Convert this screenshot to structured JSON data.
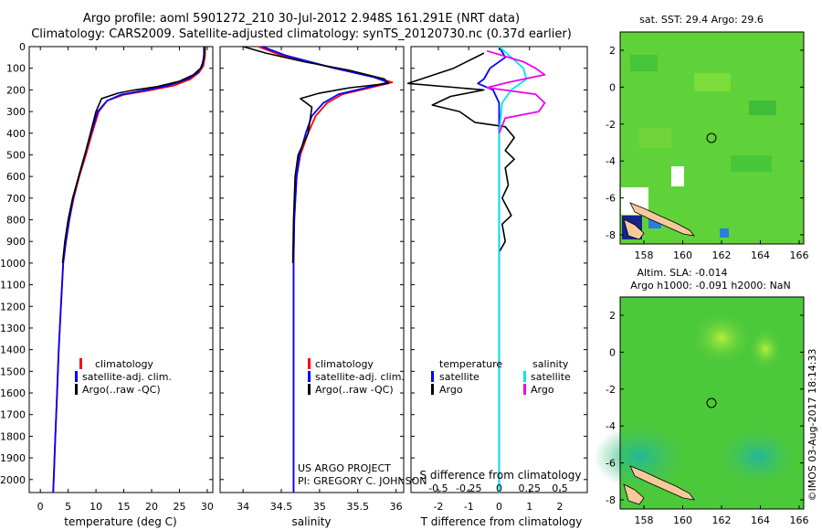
{
  "title": {
    "line1": "Argo profile: aoml 5901272_210 30-Jul-2012 2.948S 161.291E (NRT data)",
    "line2": "Climatology: CARS2009. Satellite-adjusted climatology: synTS_20120730.nc (0.37d earlier)"
  },
  "colors": {
    "climatology": "#ff0000",
    "satellite_adj": "#0000ff",
    "argo": "#000000",
    "s_diff": "#00e5ee",
    "argo_s_diff": "#ee00ee",
    "map_green": "#4fcf3a"
  },
  "depth_axis": {
    "ticks": [
      0,
      100,
      200,
      300,
      400,
      500,
      600,
      700,
      800,
      900,
      1000,
      1100,
      1200,
      1300,
      1400,
      1500,
      1600,
      1700,
      1800,
      1900,
      2000
    ],
    "range": [
      0,
      2060
    ]
  },
  "chart_data": [
    {
      "type": "line",
      "name": "temperature",
      "xlabel": "temperature (deg C)",
      "xlim": [
        -2,
        31
      ],
      "xticks": [
        0,
        5,
        10,
        15,
        20,
        25,
        30
      ],
      "legend": [
        "climatology",
        "satellite-adj. clim.",
        "Argo(..raw -QC)"
      ],
      "series": [
        {
          "name": "climatology",
          "points": [
            [
              29.6,
              0
            ],
            [
              29.6,
              40
            ],
            [
              29.3,
              90
            ],
            [
              28.5,
              120
            ],
            [
              27,
              150
            ],
            [
              24,
              180
            ],
            [
              19,
              205
            ],
            [
              15,
              222
            ],
            [
              12,
              250
            ],
            [
              10.5,
              300
            ],
            [
              9.3,
              400
            ],
            [
              8.2,
              500
            ],
            [
              7,
              600
            ],
            [
              6,
              700
            ],
            [
              5.2,
              800
            ],
            [
              4.6,
              900
            ],
            [
              4.1,
              1000
            ],
            [
              3.7,
              1200
            ],
            [
              3.3,
              1400
            ],
            [
              3,
              1600
            ],
            [
              2.7,
              1800
            ],
            [
              2.4,
              2000
            ],
            [
              2.3,
              2060
            ]
          ]
        },
        {
          "name": "satellite-adj. clim.",
          "points": [
            [
              29.4,
              0
            ],
            [
              29.4,
              40
            ],
            [
              29.1,
              90
            ],
            [
              28.3,
              120
            ],
            [
              26.5,
              150
            ],
            [
              23,
              180
            ],
            [
              18,
              205
            ],
            [
              14.5,
              222
            ],
            [
              12,
              250
            ],
            [
              10.3,
              300
            ],
            [
              9.1,
              400
            ],
            [
              8,
              500
            ],
            [
              6.9,
              600
            ],
            [
              5.9,
              700
            ],
            [
              5.2,
              800
            ],
            [
              4.6,
              900
            ],
            [
              4.1,
              1000
            ],
            [
              3.7,
              1200
            ],
            [
              3.3,
              1400
            ],
            [
              3,
              1600
            ],
            [
              2.7,
              1800
            ],
            [
              2.4,
              2000
            ],
            [
              2.3,
              2060
            ]
          ]
        },
        {
          "name": "Argo(..raw -QC)",
          "points": [
            [
              29.6,
              0
            ],
            [
              29.4,
              60
            ],
            [
              28.8,
              100
            ],
            [
              27.5,
              130
            ],
            [
              25,
              160
            ],
            [
              21,
              185
            ],
            [
              17,
              200
            ],
            [
              14,
              215
            ],
            [
              11,
              240
            ],
            [
              10,
              300
            ],
            [
              9,
              400
            ],
            [
              8,
              500
            ],
            [
              6.9,
              600
            ],
            [
              5.8,
              700
            ],
            [
              5,
              800
            ],
            [
              4.4,
              900
            ],
            [
              4,
              1000
            ]
          ]
        }
      ]
    },
    {
      "type": "line",
      "name": "salinity",
      "xlabel": "salinity",
      "xlim": [
        33.7,
        36.1
      ],
      "xticks": [
        34,
        34.5,
        35,
        35.5,
        36
      ],
      "xticklabels": [
        "34",
        "34.5",
        "35",
        "35.5",
        "36"
      ],
      "legend": [
        "climatology",
        "satellite-adj. clim.",
        "Argo(..raw -QC)"
      ],
      "series": [
        {
          "name": "climatology",
          "points": [
            [
              34.2,
              0
            ],
            [
              34.5,
              40
            ],
            [
              35.2,
              100
            ],
            [
              35.7,
              140
            ],
            [
              35.95,
              165
            ],
            [
              35.6,
              195
            ],
            [
              35.3,
              220
            ],
            [
              35.1,
              260
            ],
            [
              34.95,
              320
            ],
            [
              34.85,
              400
            ],
            [
              34.75,
              500
            ],
            [
              34.7,
              600
            ],
            [
              34.67,
              800
            ],
            [
              34.66,
              1000
            ],
            [
              34.66,
              2060
            ]
          ]
        },
        {
          "name": "satellite-adj. clim.",
          "points": [
            [
              34.25,
              0
            ],
            [
              34.55,
              40
            ],
            [
              35.2,
              100
            ],
            [
              35.7,
              140
            ],
            [
              35.9,
              165
            ],
            [
              35.55,
              195
            ],
            [
              35.25,
              220
            ],
            [
              35.05,
              260
            ],
            [
              34.9,
              320
            ],
            [
              34.82,
              400
            ],
            [
              34.74,
              500
            ],
            [
              34.7,
              600
            ],
            [
              34.67,
              800
            ],
            [
              34.66,
              1000
            ],
            [
              34.66,
              2060
            ]
          ]
        },
        {
          "name": "Argo(..raw -QC)",
          "points": [
            [
              34.0,
              0
            ],
            [
              34.3,
              30
            ],
            [
              34.8,
              70
            ],
            [
              35.4,
              110
            ],
            [
              35.85,
              150
            ],
            [
              35.9,
              170
            ],
            [
              35.4,
              190
            ],
            [
              35,
              215
            ],
            [
              34.75,
              240
            ],
            [
              34.9,
              280
            ],
            [
              34.85,
              400
            ],
            [
              34.72,
              500
            ],
            [
              34.68,
              600
            ],
            [
              34.66,
              800
            ],
            [
              34.65,
              1000
            ]
          ]
        }
      ]
    },
    {
      "type": "line",
      "name": "difference from climatology",
      "xlabel_top": "S difference from climatology",
      "xlabel": "T difference from climatology",
      "xlim": [
        -2.9,
        2.9
      ],
      "xticks": [
        -2,
        -1,
        0,
        1,
        2
      ],
      "s_ticklabels": [
        "-0.5",
        "-0.25",
        "0",
        "0.25",
        "0.5"
      ],
      "legend": {
        "temperature": [
          "satellite",
          "Argo"
        ],
        "salinity": [
          "satellite",
          "Argo"
        ],
        "headers": [
          "temperature",
          "salinity"
        ]
      },
      "series": [
        {
          "name": "T satellite",
          "points": [
            [
              0,
              0
            ],
            [
              0.2,
              50
            ],
            [
              -0.3,
              100
            ],
            [
              -0.5,
              150
            ],
            [
              -0.7,
              170
            ],
            [
              -0.2,
              200
            ],
            [
              0,
              260
            ],
            [
              0,
              500
            ],
            [
              0,
              2060
            ]
          ]
        },
        {
          "name": "T Argo",
          "points": [
            [
              -0.5,
              30
            ],
            [
              -1.5,
              100
            ],
            [
              -3,
              170
            ],
            [
              -0.5,
              200
            ],
            [
              -1.6,
              230
            ],
            [
              -2.2,
              270
            ],
            [
              -1.3,
              300
            ],
            [
              -0.8,
              350
            ],
            [
              0.2,
              370
            ],
            [
              0.5,
              420
            ],
            [
              0.2,
              480
            ],
            [
              0.5,
              520
            ],
            [
              0.2,
              560
            ],
            [
              0.3,
              640
            ],
            [
              0.1,
              700
            ],
            [
              0.4,
              780
            ],
            [
              0.1,
              820
            ],
            [
              0.2,
              900
            ],
            [
              0,
              950
            ],
            [
              0,
              1000
            ]
          ]
        },
        {
          "name": "S satellite",
          "points": [
            [
              0,
              0
            ],
            [
              0.4,
              50
            ],
            [
              0.8,
              100
            ],
            [
              0.9,
              150
            ],
            [
              0.4,
              200
            ],
            [
              0.1,
              260
            ],
            [
              0,
              400
            ],
            [
              0,
              2060
            ]
          ]
        },
        {
          "name": "S Argo",
          "points": [
            [
              -0.4,
              20
            ],
            [
              0.8,
              70
            ],
            [
              1.2,
              100
            ],
            [
              1.5,
              130
            ],
            [
              0.3,
              165
            ],
            [
              -0.4,
              190
            ],
            [
              1.2,
              220
            ],
            [
              1.5,
              260
            ],
            [
              1.3,
              300
            ],
            [
              0.2,
              330
            ],
            [
              0,
              400
            ]
          ]
        }
      ]
    }
  ],
  "maps": {
    "top": {
      "title": "sat. SST: 29.4  Argo: 29.6",
      "yticks": [
        "2",
        "0",
        "-2",
        "-4",
        "-6",
        "-8"
      ],
      "xticks": [
        "158",
        "160",
        "162",
        "164",
        "166"
      ]
    },
    "bottom": {
      "title_line1": "Altim. SLA: -0.014",
      "title_line2": "Argo h1000: -0.091  h2000: NaN",
      "yticks": [
        "2",
        "0",
        "-2",
        "-4",
        "-6",
        "-8"
      ],
      "xticks": [
        "158",
        "160",
        "162",
        "164",
        "166"
      ]
    }
  },
  "annotation": {
    "project_line1": "US ARGO PROJECT",
    "project_line2": "PI: GREGORY C. JOHNSON",
    "copyright": "©IMOS 03-Aug-2017 18:14:33"
  }
}
